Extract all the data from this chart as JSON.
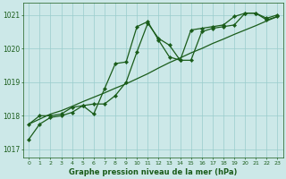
{
  "bg_color": "#cce8e8",
  "grid_color": "#99cccc",
  "line_color": "#1a5c1a",
  "title": "Graphe pression niveau de la mer (hPa)",
  "xlim": [
    -0.5,
    23.5
  ],
  "ylim": [
    1016.75,
    1021.35
  ],
  "yticks": [
    1017,
    1018,
    1019,
    1020,
    1021
  ],
  "xticks": [
    0,
    1,
    2,
    3,
    4,
    5,
    6,
    7,
    8,
    9,
    10,
    11,
    12,
    13,
    14,
    15,
    16,
    17,
    18,
    19,
    20,
    21,
    22,
    23
  ],
  "series_smooth_x": [
    0,
    1,
    2,
    3,
    4,
    5,
    6,
    7,
    8,
    9,
    10,
    11,
    12,
    13,
    14,
    15,
    16,
    17,
    18,
    19,
    20,
    21,
    22,
    23
  ],
  "series_smooth_y": [
    1017.75,
    1017.9,
    1018.05,
    1018.15,
    1018.28,
    1018.42,
    1018.55,
    1018.68,
    1018.82,
    1018.95,
    1019.1,
    1019.25,
    1019.42,
    1019.58,
    1019.72,
    1019.87,
    1020.0,
    1020.15,
    1020.28,
    1020.42,
    1020.55,
    1020.68,
    1020.82,
    1020.95
  ],
  "series_marker1_x": [
    0,
    1,
    2,
    3,
    4,
    5,
    6,
    7,
    8,
    9,
    10,
    11,
    12,
    13,
    14,
    15,
    16,
    17,
    18,
    19,
    20,
    21,
    22,
    23
  ],
  "series_marker1_y": [
    1017.75,
    1018.0,
    1018.0,
    1018.05,
    1018.25,
    1018.3,
    1018.35,
    1018.35,
    1018.6,
    1019.0,
    1019.9,
    1020.75,
    1020.3,
    1020.1,
    1019.65,
    1019.65,
    1020.5,
    1020.6,
    1020.65,
    1020.7,
    1021.05,
    1021.05,
    1020.85,
    1020.95
  ],
  "series_marker2_x": [
    0,
    1,
    2,
    3,
    4,
    5,
    6,
    7,
    8,
    9,
    10,
    11,
    12,
    13,
    14,
    15,
    16,
    17,
    18,
    19,
    20,
    21,
    22,
    23
  ],
  "series_marker2_y": [
    1017.3,
    1017.75,
    1017.95,
    1018.0,
    1018.1,
    1018.3,
    1018.05,
    1018.8,
    1019.55,
    1019.6,
    1020.65,
    1020.8,
    1020.25,
    1019.75,
    1019.65,
    1020.55,
    1020.6,
    1020.65,
    1020.7,
    1020.95,
    1021.05,
    1021.05,
    1020.9,
    1021.0
  ],
  "marker_style": "D",
  "marker_size": 2.2,
  "line_width": 0.9
}
